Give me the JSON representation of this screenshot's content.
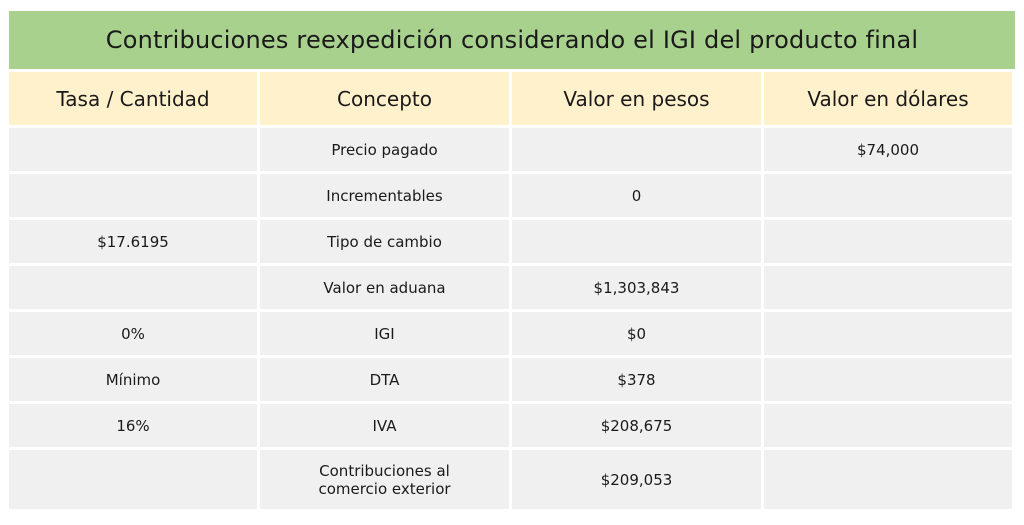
{
  "title": "Contribuciones reexpedición considerando el IGI del producto final",
  "headers": [
    "Tasa / Cantidad",
    "Concepto",
    "Valor en pesos",
    "Valor en dólares"
  ],
  "rows": [
    {
      "tasa": "",
      "concepto": "Precio pagado",
      "pesos": "",
      "dolares": "$74,000"
    },
    {
      "tasa": "",
      "concepto": "Incrementables",
      "pesos": "0",
      "dolares": ""
    },
    {
      "tasa": "$17.6195",
      "concepto": "Tipo de cambio",
      "pesos": "",
      "dolares": ""
    },
    {
      "tasa": "",
      "concepto": "Valor en aduana",
      "pesos": "$1,303,843",
      "dolares": ""
    },
    {
      "tasa": "0%",
      "concepto": "IGI",
      "pesos": "$0",
      "dolares": ""
    },
    {
      "tasa": "Mínimo",
      "concepto": "DTA",
      "pesos": "$378",
      "dolares": ""
    },
    {
      "tasa": "16%",
      "concepto": "IVA",
      "pesos": "$208,675",
      "dolares": ""
    },
    {
      "tasa": "",
      "concepto_line1": "Contribuciones al",
      "concepto_line2": "comercio exterior",
      "pesos": "$209,053",
      "dolares": ""
    }
  ],
  "colors": {
    "title_bg": "#a9d18e",
    "header_bg": "#fff1cc",
    "cell_bg": "#f0f0f0"
  }
}
